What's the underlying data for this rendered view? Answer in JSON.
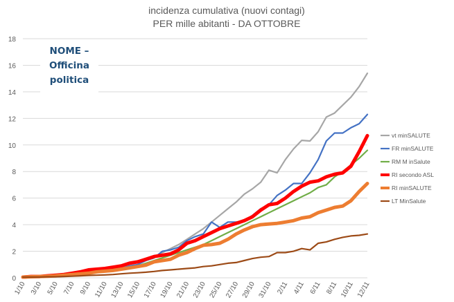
{
  "chart_data": {
    "type": "line",
    "title_line1": "incidenza cumulativa (nuovi contagi)",
    "title_line2": "PER mille  abitanti - DA OTTOBRE",
    "xlabel": "",
    "ylabel": "",
    "ylim": [
      0,
      18
    ],
    "yticks": [
      "0",
      "2",
      "4",
      "6",
      "8",
      "10",
      "12",
      "14",
      "16",
      "18"
    ],
    "grid": true,
    "legend_position": "right",
    "x": [
      "1/10",
      "2/10",
      "3/10",
      "4/10",
      "5/10",
      "6/10",
      "7/10",
      "8/10",
      "9/10",
      "10/10",
      "11/10",
      "12/10",
      "13/10",
      "14/10",
      "15/10",
      "16/10",
      "17/10",
      "18/10",
      "19/10",
      "20/10",
      "21/10",
      "22/10",
      "23/10",
      "24/10",
      "25/10",
      "26/10",
      "27/10",
      "28/10",
      "29/10",
      "30/10",
      "31/10",
      "1/11",
      "2/11",
      "3/11",
      "4/11",
      "5/11",
      "6/11",
      "7/11",
      "8/11",
      "9/11",
      "10/11",
      "11/11",
      "12/11"
    ],
    "xtick_labels": [
      "1/10",
      "3/10",
      "5/10",
      "7/10",
      "9/10",
      "11/10",
      "13/10",
      "15/10",
      "17/10",
      "19/10",
      "21/10",
      "23/10",
      "25/10",
      "27/10",
      "29/10",
      "31/10",
      "2/11",
      "4/11",
      "6/11",
      "8/11",
      "10/11",
      "12/11"
    ],
    "series": [
      {
        "name": "vt minSALUTE",
        "color": "#a6a6a6",
        "width": 2.2,
        "values": [
          0.05,
          0.1,
          0.1,
          0.15,
          0.2,
          0.25,
          0.3,
          0.35,
          0.45,
          0.5,
          0.55,
          0.6,
          0.7,
          0.85,
          1.0,
          1.3,
          1.5,
          1.9,
          2.2,
          2.5,
          2.9,
          3.3,
          3.7,
          4.2,
          4.7,
          5.2,
          5.7,
          6.3,
          6.7,
          7.2,
          8.1,
          7.9,
          8.9,
          9.7,
          10.35,
          10.3,
          11.0,
          12.1,
          12.4,
          13.0,
          13.6,
          14.4,
          15.4
        ]
      },
      {
        "name": "FR minSALUTE",
        "color": "#4472c4",
        "width": 2.2,
        "values": [
          0.05,
          0.1,
          0.1,
          0.12,
          0.15,
          0.2,
          0.25,
          0.3,
          0.4,
          0.5,
          0.55,
          0.6,
          0.7,
          0.9,
          1.0,
          1.3,
          1.5,
          2.0,
          2.1,
          2.3,
          2.8,
          3.1,
          3.3,
          4.2,
          3.8,
          4.2,
          4.2,
          4.3,
          4.7,
          5.2,
          5.5,
          6.2,
          6.6,
          7.1,
          7.1,
          7.9,
          8.9,
          10.3,
          10.9,
          10.9,
          11.3,
          11.6,
          12.3
        ]
      },
      {
        "name": "RM M inSalute",
        "color": "#70ad47",
        "width": 2.2,
        "values": [
          0.05,
          0.08,
          0.1,
          0.12,
          0.15,
          0.2,
          0.25,
          0.3,
          0.35,
          0.4,
          0.45,
          0.5,
          0.6,
          0.75,
          0.9,
          1.1,
          1.3,
          1.5,
          1.7,
          1.9,
          2.1,
          2.3,
          2.5,
          2.8,
          3.1,
          3.4,
          3.7,
          4.0,
          4.3,
          4.6,
          4.9,
          5.2,
          5.5,
          5.8,
          6.1,
          6.4,
          6.8,
          7.0,
          7.6,
          8.0,
          8.5,
          9.0,
          9.6
        ]
      },
      {
        "name": "RI secondo ASL",
        "color": "#ff0000",
        "width": 5,
        "values": [
          0.05,
          0.1,
          0.1,
          0.15,
          0.2,
          0.25,
          0.35,
          0.45,
          0.6,
          0.65,
          0.7,
          0.8,
          0.9,
          1.1,
          1.2,
          1.4,
          1.6,
          1.7,
          1.8,
          2.1,
          2.6,
          2.8,
          3.1,
          3.4,
          3.7,
          3.9,
          4.1,
          4.3,
          4.6,
          5.1,
          5.5,
          5.6,
          6.0,
          6.5,
          6.9,
          7.2,
          7.3,
          7.6,
          7.8,
          7.9,
          8.4,
          9.5,
          10.7
        ]
      },
      {
        "name": "RI minSALUTE",
        "color": "#ed7d31",
        "width": 5,
        "values": [
          0.05,
          0.08,
          0.1,
          0.12,
          0.15,
          0.2,
          0.25,
          0.3,
          0.35,
          0.45,
          0.5,
          0.55,
          0.65,
          0.75,
          0.85,
          0.95,
          1.2,
          1.3,
          1.4,
          1.7,
          1.9,
          2.2,
          2.45,
          2.5,
          2.6,
          2.9,
          3.3,
          3.6,
          3.85,
          4.0,
          4.05,
          4.1,
          4.2,
          4.3,
          4.5,
          4.6,
          4.9,
          5.1,
          5.3,
          5.4,
          5.8,
          6.5,
          7.1
        ]
      },
      {
        "name": "LT MinSalute",
        "color": "#9c4a16",
        "width": 2.2,
        "values": [
          0.05,
          0.05,
          0.05,
          0.08,
          0.08,
          0.1,
          0.12,
          0.15,
          0.18,
          0.2,
          0.22,
          0.25,
          0.3,
          0.35,
          0.38,
          0.42,
          0.48,
          0.55,
          0.6,
          0.65,
          0.7,
          0.75,
          0.85,
          0.9,
          1.0,
          1.1,
          1.15,
          1.3,
          1.45,
          1.55,
          1.6,
          1.9,
          1.9,
          2.0,
          2.2,
          2.1,
          2.6,
          2.7,
          2.9,
          3.05,
          3.15,
          3.2,
          3.3
        ]
      }
    ]
  },
  "watermark": {
    "line1": "NOME  –",
    "line2": "Officina",
    "line3": "politica"
  }
}
